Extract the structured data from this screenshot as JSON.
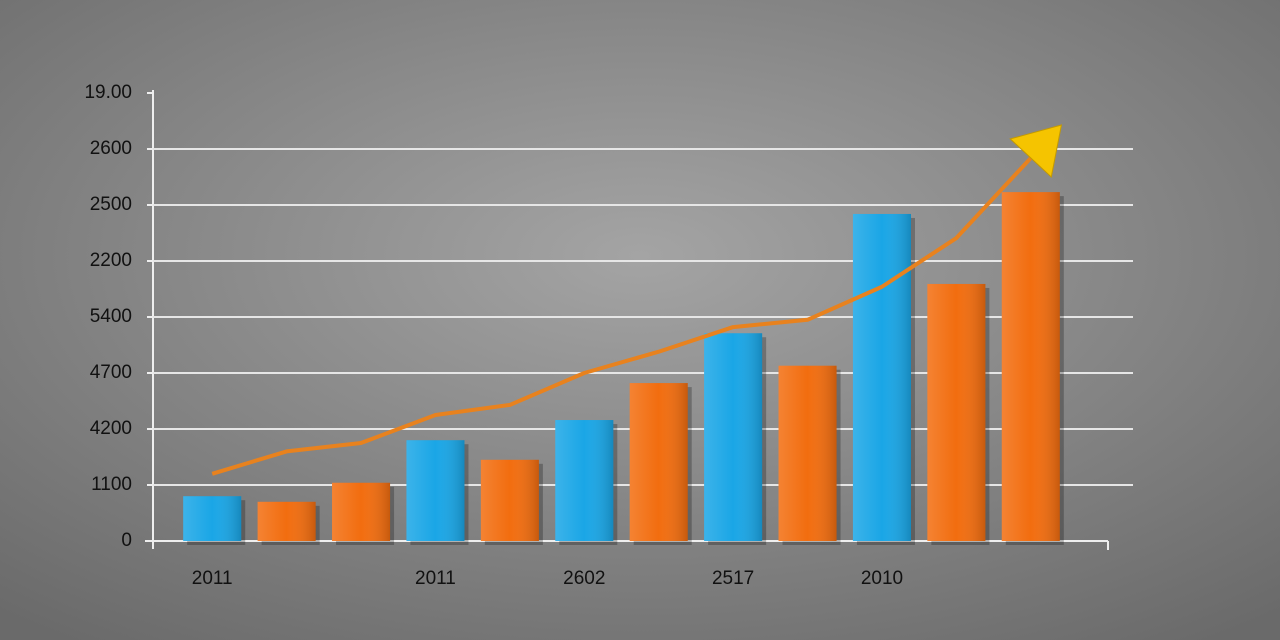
{
  "chart_data": {
    "type": "bar",
    "categories": [
      "2011",
      null,
      null,
      "2011",
      null,
      "2602",
      null,
      "2517",
      null,
      "2010",
      null,
      null
    ],
    "series": [
      {
        "type": "bar",
        "colors": [
          "#1aa6e6",
          "#f26d0f",
          "#f26d0f",
          "#1aa6e6",
          "#f26d0f",
          "#1aa6e6",
          "#f26d0f",
          "#1aa6e6",
          "#f26d0f",
          "#1aa6e6",
          "#f26d0f",
          "#f26d0f"
        ],
        "values": [
          0.8,
          0.7,
          1.04,
          1.8,
          1.45,
          2.16,
          2.82,
          3.71,
          3.13,
          5.84,
          4.59,
          6.23
        ]
      },
      {
        "type": "line",
        "color": "#e8821e",
        "arrow_color": "#f5c400",
        "values": [
          1.2,
          1.6,
          1.75,
          2.25,
          2.43,
          3.0,
          3.38,
          3.82,
          3.95,
          4.54,
          5.41,
          6.84
        ]
      }
    ],
    "ylim": [
      0,
      8
    ],
    "yticks": [
      {
        "value": 0,
        "label": "0"
      },
      {
        "value": 1,
        "label": "1100"
      },
      {
        "value": 2,
        "label": "4200"
      },
      {
        "value": 3,
        "label": "4700"
      },
      {
        "value": 4,
        "label": "5400"
      },
      {
        "value": 5,
        "label": "2200"
      },
      {
        "value": 6,
        "label": "2500"
      },
      {
        "value": 7,
        "label": "2600"
      },
      {
        "value": 8,
        "label": "19.00"
      }
    ],
    "grid": true
  }
}
